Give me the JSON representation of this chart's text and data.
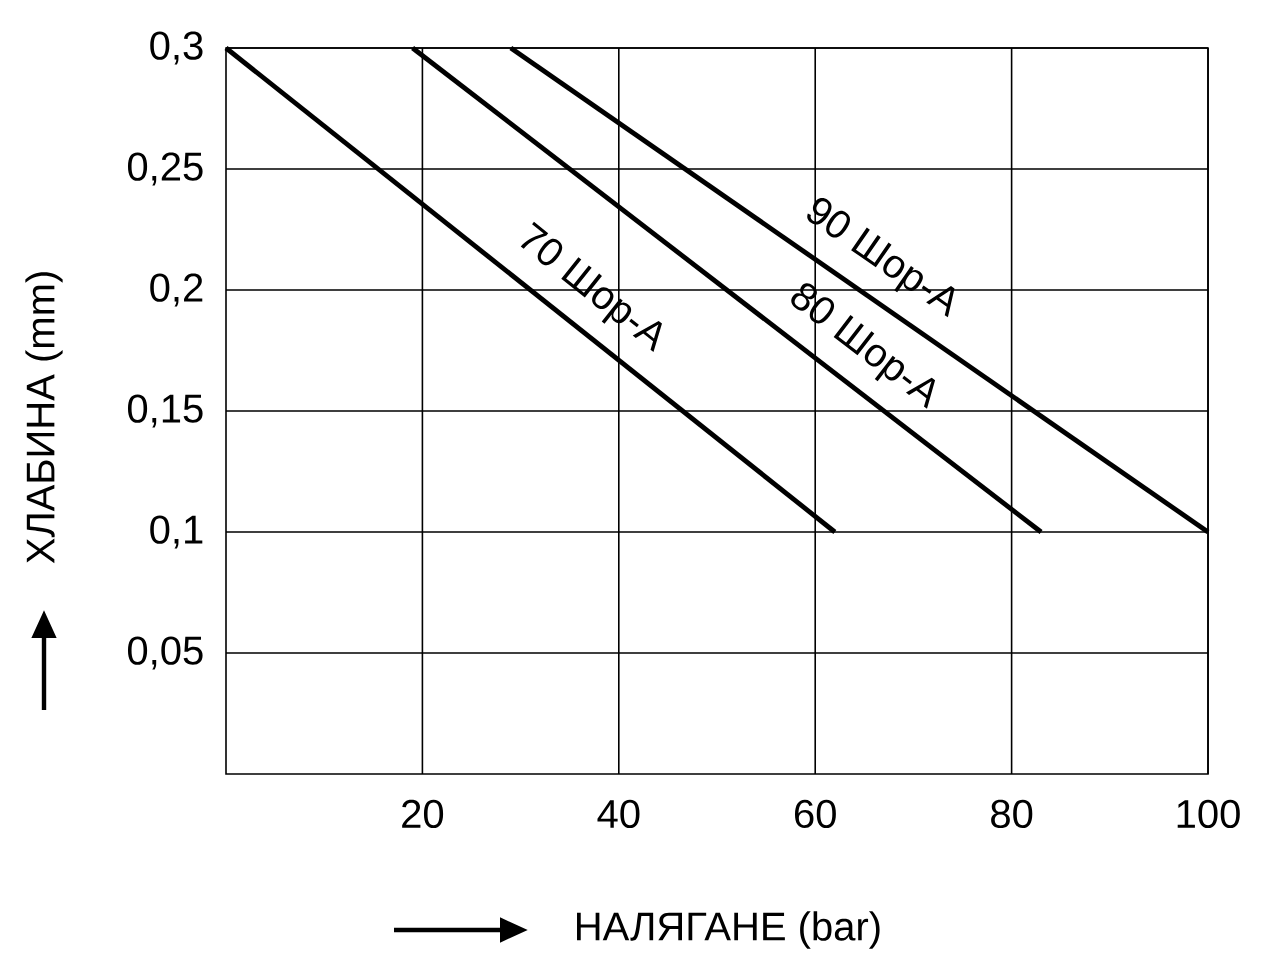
{
  "chart_data": {
    "type": "line",
    "xlabel": "НАЛЯГАНЕ (bar)",
    "ylabel": "ХЛАБИНА (mm)",
    "xlim": [
      0,
      100
    ],
    "ylim": [
      0,
      0.3
    ],
    "xticks": [
      20,
      40,
      60,
      80,
      100
    ],
    "yticks": [
      {
        "value": 0.05,
        "label": "0,05"
      },
      {
        "value": 0.1,
        "label": "0,1"
      },
      {
        "value": 0.15,
        "label": "0,15"
      },
      {
        "value": 0.2,
        "label": "0,2"
      },
      {
        "value": 0.25,
        "label": "0,25"
      },
      {
        "value": 0.3,
        "label": "0,3"
      }
    ],
    "grid": true,
    "marker": "none",
    "line_style": "solid",
    "series": [
      {
        "name": "70 Шор-А",
        "color": "#000000",
        "x": [
          0,
          62
        ],
        "values": [
          0.3,
          0.1
        ]
      },
      {
        "name": "80 Шор-А",
        "color": "#000000",
        "x": [
          19,
          83
        ],
        "values": [
          0.3,
          0.1
        ]
      },
      {
        "name": "90 Шор-А",
        "color": "#000000",
        "x": [
          29,
          100
        ],
        "values": [
          0.3,
          0.1
        ]
      }
    ]
  }
}
